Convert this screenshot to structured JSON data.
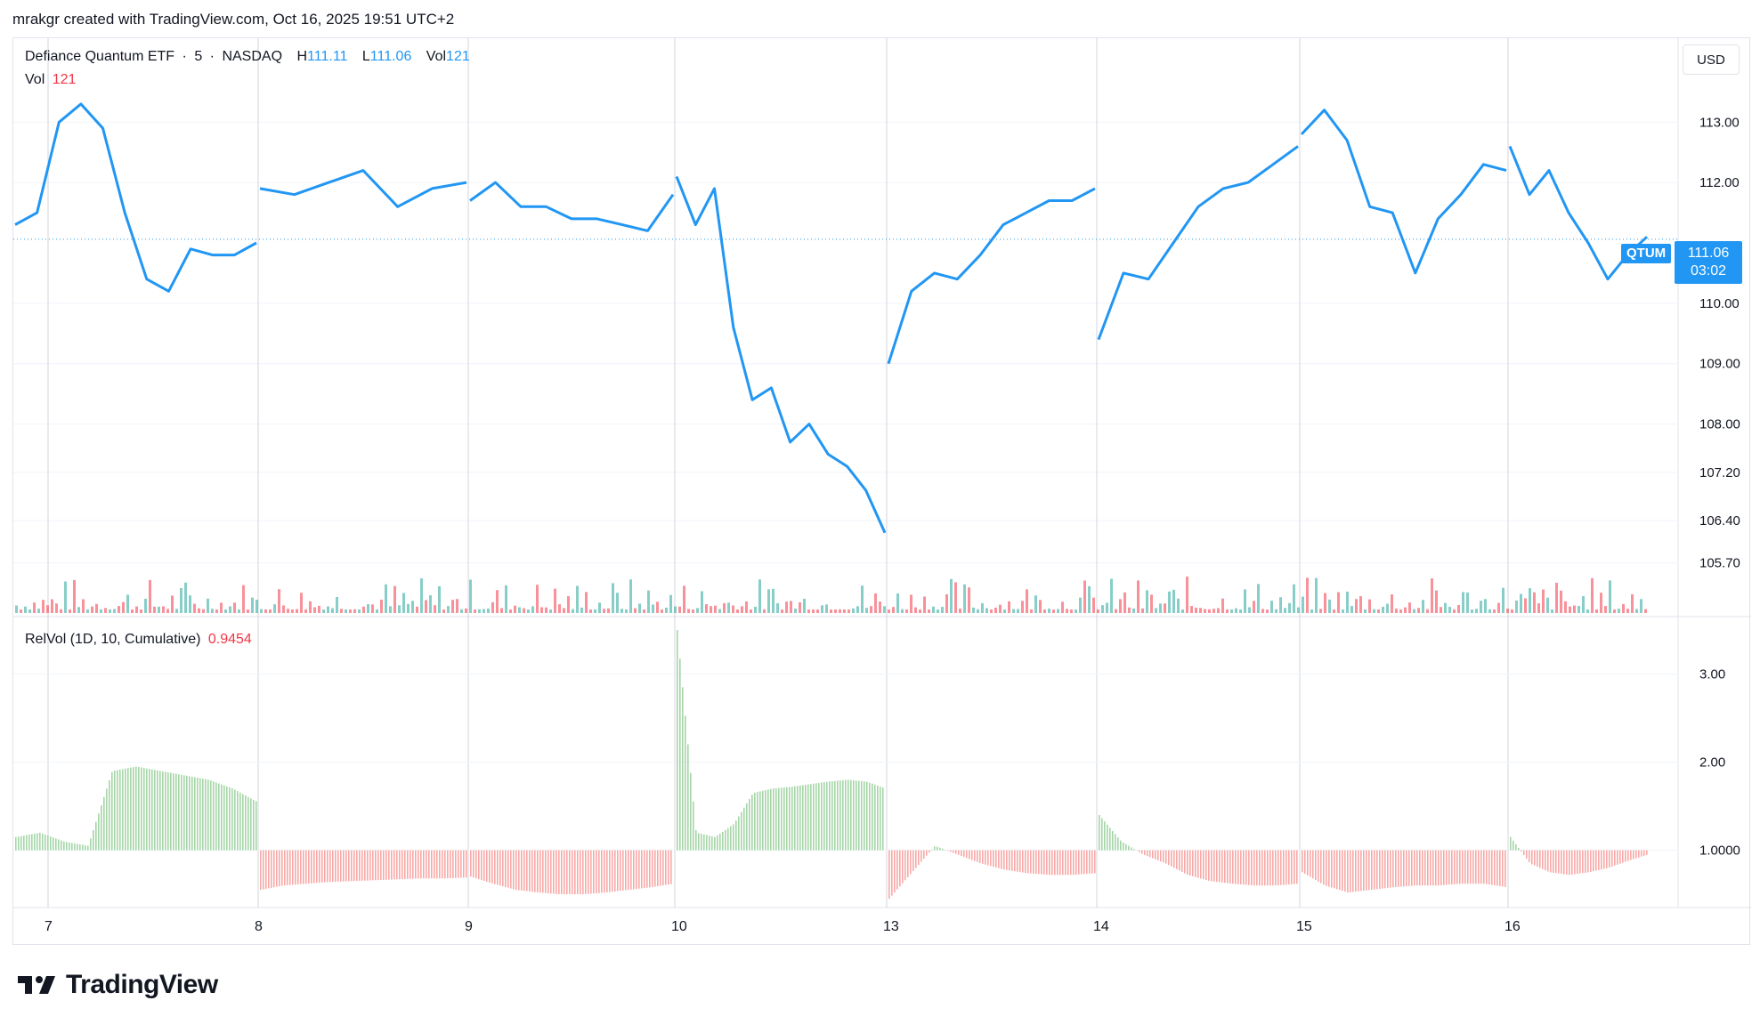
{
  "caption": "mrakgr created with TradingView.com, Oct 16, 2025 19:51 UTC+2",
  "legend": {
    "name": "Defiance Quantum ETF",
    "dot": "·",
    "interval": "5",
    "exchange": "NASDAQ",
    "h_label": "H",
    "h_value": "111.11",
    "l_label": "L",
    "l_value": "111.06",
    "vol_label": "Vol",
    "vol_value": "121"
  },
  "vol_legend": {
    "label": "Vol",
    "value": "121"
  },
  "relvol_legend": {
    "label": "RelVol (1D, 10, Cumulative)",
    "value": "0.9454"
  },
  "currency": "USD",
  "price_tag": {
    "symbol": "QTUM",
    "price": "111.06",
    "countdown": "03:02"
  },
  "logo_text": "TradingView",
  "colors": {
    "line": "#2196f3",
    "up_volume": "#26a69a",
    "down_volume": "#f23645",
    "relvol_up": "#a5d6a7",
    "relvol_down": "#f7a9a7"
  },
  "chart_data": [
    {
      "type": "line",
      "title": "Defiance Quantum ETF · 5 · NASDAQ",
      "x_labels": [
        "7",
        "8",
        "9",
        "10",
        "13",
        "14",
        "15",
        "16"
      ],
      "y_ticks": [
        "113.00",
        "112.00",
        "111.06",
        "110.00",
        "109.00",
        "108.00",
        "107.20",
        "106.40",
        "105.70"
      ],
      "ylim": [
        105.4,
        113.8
      ],
      "last_price": 111.06,
      "series": [
        {
          "points": [
            [
              "7",
              111.3
            ],
            [
              "7",
              111.5
            ],
            [
              "7",
              113.0
            ],
            [
              "7",
              113.3
            ],
            [
              "7",
              112.9
            ],
            [
              "7",
              111.5
            ],
            [
              "7",
              110.4
            ],
            [
              "7",
              110.2
            ],
            [
              "7",
              110.9
            ],
            [
              "7",
              110.8
            ],
            [
              "7",
              110.8
            ],
            [
              "7",
              111.0
            ],
            [
              "8",
              111.9
            ],
            [
              "8",
              111.8
            ],
            [
              "8",
              112.0
            ],
            [
              "8",
              112.2
            ],
            [
              "8",
              111.6
            ],
            [
              "8",
              111.9
            ],
            [
              "8",
              112.0
            ],
            [
              "9",
              111.7
            ],
            [
              "9",
              112.0
            ],
            [
              "9",
              111.6
            ],
            [
              "9",
              111.6
            ],
            [
              "9",
              111.4
            ],
            [
              "9",
              111.4
            ],
            [
              "9",
              111.3
            ],
            [
              "9",
              111.2
            ],
            [
              "9",
              111.8
            ],
            [
              "10",
              112.1
            ],
            [
              "10",
              111.3
            ],
            [
              "10",
              111.9
            ],
            [
              "10",
              109.6
            ],
            [
              "10",
              108.4
            ],
            [
              "10",
              108.6
            ],
            [
              "10",
              107.7
            ],
            [
              "10",
              108.0
            ],
            [
              "10",
              107.5
            ],
            [
              "10",
              107.3
            ],
            [
              "10",
              106.9
            ],
            [
              "10",
              106.2
            ],
            [
              "13",
              109.0
            ],
            [
              "13",
              110.2
            ],
            [
              "13",
              110.5
            ],
            [
              "13",
              110.4
            ],
            [
              "13",
              110.8
            ],
            [
              "13",
              111.3
            ],
            [
              "13",
              111.5
            ],
            [
              "13",
              111.7
            ],
            [
              "13",
              111.7
            ],
            [
              "13",
              111.9
            ],
            [
              "14",
              109.4
            ],
            [
              "14",
              110.5
            ],
            [
              "14",
              110.4
            ],
            [
              "14",
              111.0
            ],
            [
              "14",
              111.6
            ],
            [
              "14",
              111.9
            ],
            [
              "14",
              112.0
            ],
            [
              "14",
              112.3
            ],
            [
              "14",
              112.6
            ],
            [
              "15",
              112.8
            ],
            [
              "15",
              113.2
            ],
            [
              "15",
              112.7
            ],
            [
              "15",
              111.6
            ],
            [
              "15",
              111.5
            ],
            [
              "15",
              110.5
            ],
            [
              "15",
              111.4
            ],
            [
              "15",
              111.8
            ],
            [
              "15",
              112.3
            ],
            [
              "15",
              112.2
            ],
            [
              "16",
              112.6
            ],
            [
              "16",
              111.8
            ],
            [
              "16",
              112.2
            ],
            [
              "16",
              111.5
            ],
            [
              "16",
              111.0
            ],
            [
              "16",
              110.4
            ],
            [
              "16",
              110.8
            ],
            [
              "16",
              111.1
            ]
          ]
        }
      ]
    },
    {
      "type": "bar",
      "title": "Vol",
      "last_value": 121
    },
    {
      "type": "bar",
      "title": "RelVol (1D, 10, Cumulative)",
      "y_ticks": [
        "3.00",
        "2.00",
        "1.0000"
      ],
      "ylim": [
        0.4,
        3.4
      ],
      "baseline": 1.0,
      "last_value": 0.9454,
      "daily_profile": [
        {
          "day": "7",
          "values": [
            1.15,
            1.2,
            1.1,
            1.05,
            1.9,
            1.95,
            1.9,
            1.85,
            1.8,
            1.7,
            1.55
          ]
        },
        {
          "day": "8",
          "values": [
            0.55,
            0.6,
            0.62,
            0.64,
            0.65,
            0.66,
            0.67,
            0.68,
            0.68,
            0.69
          ]
        },
        {
          "day": "9",
          "values": [
            0.7,
            0.62,
            0.55,
            0.52,
            0.5,
            0.5,
            0.52,
            0.55,
            0.58,
            0.62
          ]
        },
        {
          "day": "10",
          "values": [
            3.5,
            1.2,
            1.15,
            1.3,
            1.65,
            1.7,
            1.72,
            1.75,
            1.78,
            1.8,
            1.78,
            1.7
          ]
        },
        {
          "day": "13",
          "values": [
            0.45,
            0.75,
            1.05,
            0.95,
            0.85,
            0.78,
            0.74,
            0.72,
            0.72,
            0.74
          ]
        },
        {
          "day": "14",
          "values": [
            1.4,
            1.1,
            0.95,
            0.85,
            0.72,
            0.65,
            0.62,
            0.6,
            0.6,
            0.62
          ]
        },
        {
          "day": "15",
          "values": [
            0.75,
            0.6,
            0.52,
            0.55,
            0.58,
            0.6,
            0.6,
            0.62,
            0.62,
            0.58
          ]
        },
        {
          "day": "16",
          "values": [
            1.15,
            0.85,
            0.75,
            0.72,
            0.75,
            0.8,
            0.88,
            0.95
          ]
        }
      ]
    }
  ]
}
